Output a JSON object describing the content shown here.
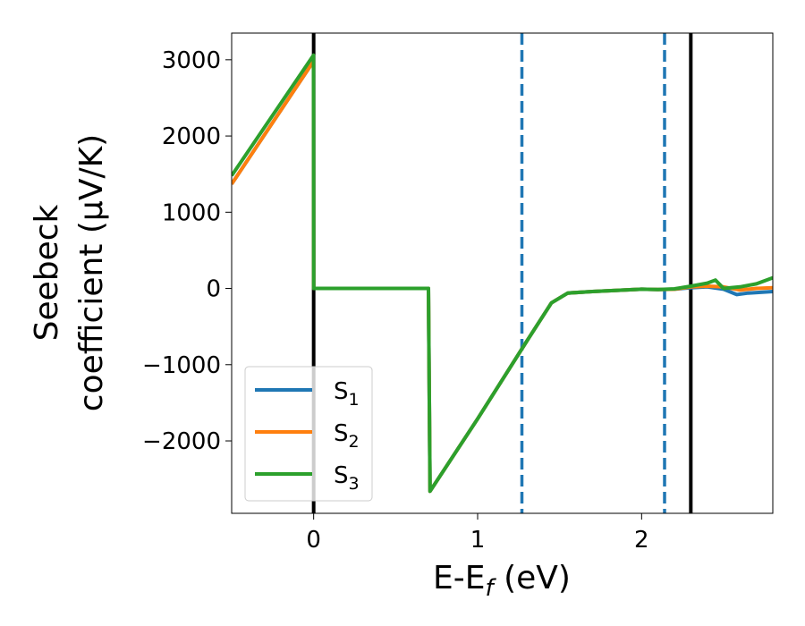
{
  "chart_data": {
    "type": "line",
    "xlabel": {
      "main": "E-E",
      "sub": "f",
      "rest": " (eV)"
    },
    "ylabel": {
      "line1": "Seebeck",
      "line2": "coefficient  (μV/K)"
    },
    "xlim": [
      -0.5,
      2.8
    ],
    "ylim": [
      -2950,
      3350
    ],
    "xticks": [
      {
        "value": 0,
        "label": "0"
      },
      {
        "value": 1,
        "label": "1"
      },
      {
        "value": 2,
        "label": "2"
      }
    ],
    "yticks": [
      {
        "value": 3000,
        "label": "3000"
      },
      {
        "value": 2000,
        "label": "2000"
      },
      {
        "value": 1000,
        "label": "1000"
      },
      {
        "value": 0,
        "label": "0"
      },
      {
        "value": -1000,
        "label": "−1000"
      },
      {
        "value": -2000,
        "label": "−2000"
      }
    ],
    "vlines": [
      {
        "x": 0.0,
        "style": "solid",
        "color": "#000000"
      },
      {
        "x": 1.27,
        "style": "dashed",
        "color": "#1f77b4"
      },
      {
        "x": 2.14,
        "style": "dashed",
        "color": "#1f77b4"
      },
      {
        "x": 2.3,
        "style": "solid",
        "color": "#000000"
      }
    ],
    "legend_position": "lower-left",
    "series": [
      {
        "name": "S",
        "sub": "1",
        "color": "#1f77b4",
        "x": [
          -0.5,
          -0.001,
          0.0,
          0.7,
          0.71,
          1.0,
          1.3,
          1.45,
          1.55,
          1.7,
          1.8,
          1.9,
          2.0,
          2.1,
          2.2,
          2.3,
          2.4,
          2.5,
          2.58,
          2.65,
          2.8
        ],
        "y": [
          1370,
          2980,
          0,
          0,
          -2660,
          -1710,
          -690,
          -190,
          -60,
          -40,
          -30,
          -20,
          -10,
          -15,
          -10,
          10,
          20,
          -10,
          -80,
          -60,
          -40
        ]
      },
      {
        "name": "S",
        "sub": "2",
        "color": "#ff7f0e",
        "x": [
          -0.5,
          -0.001,
          0.0,
          0.7,
          0.71,
          1.0,
          1.3,
          1.45,
          1.55,
          1.7,
          1.8,
          1.9,
          2.0,
          2.1,
          2.2,
          2.3,
          2.4,
          2.5,
          2.6,
          2.7,
          2.8
        ],
        "y": [
          1370,
          2980,
          0,
          0,
          -2660,
          -1710,
          -690,
          -190,
          -60,
          -40,
          -30,
          -20,
          -10,
          -15,
          -10,
          20,
          30,
          20,
          -20,
          0,
          10
        ]
      },
      {
        "name": "S",
        "sub": "3",
        "color": "#2ca02c",
        "x": [
          -0.5,
          -0.001,
          0.0,
          0.7,
          0.71,
          1.0,
          1.3,
          1.45,
          1.55,
          1.7,
          1.8,
          1.9,
          2.0,
          2.1,
          2.2,
          2.3,
          2.4,
          2.45,
          2.5,
          2.6,
          2.7,
          2.8
        ],
        "y": [
          1480,
          3060,
          0,
          0,
          -2660,
          -1710,
          -690,
          -190,
          -60,
          -40,
          -30,
          -20,
          -10,
          -15,
          -5,
          30,
          70,
          110,
          0,
          20,
          60,
          140
        ]
      }
    ]
  }
}
